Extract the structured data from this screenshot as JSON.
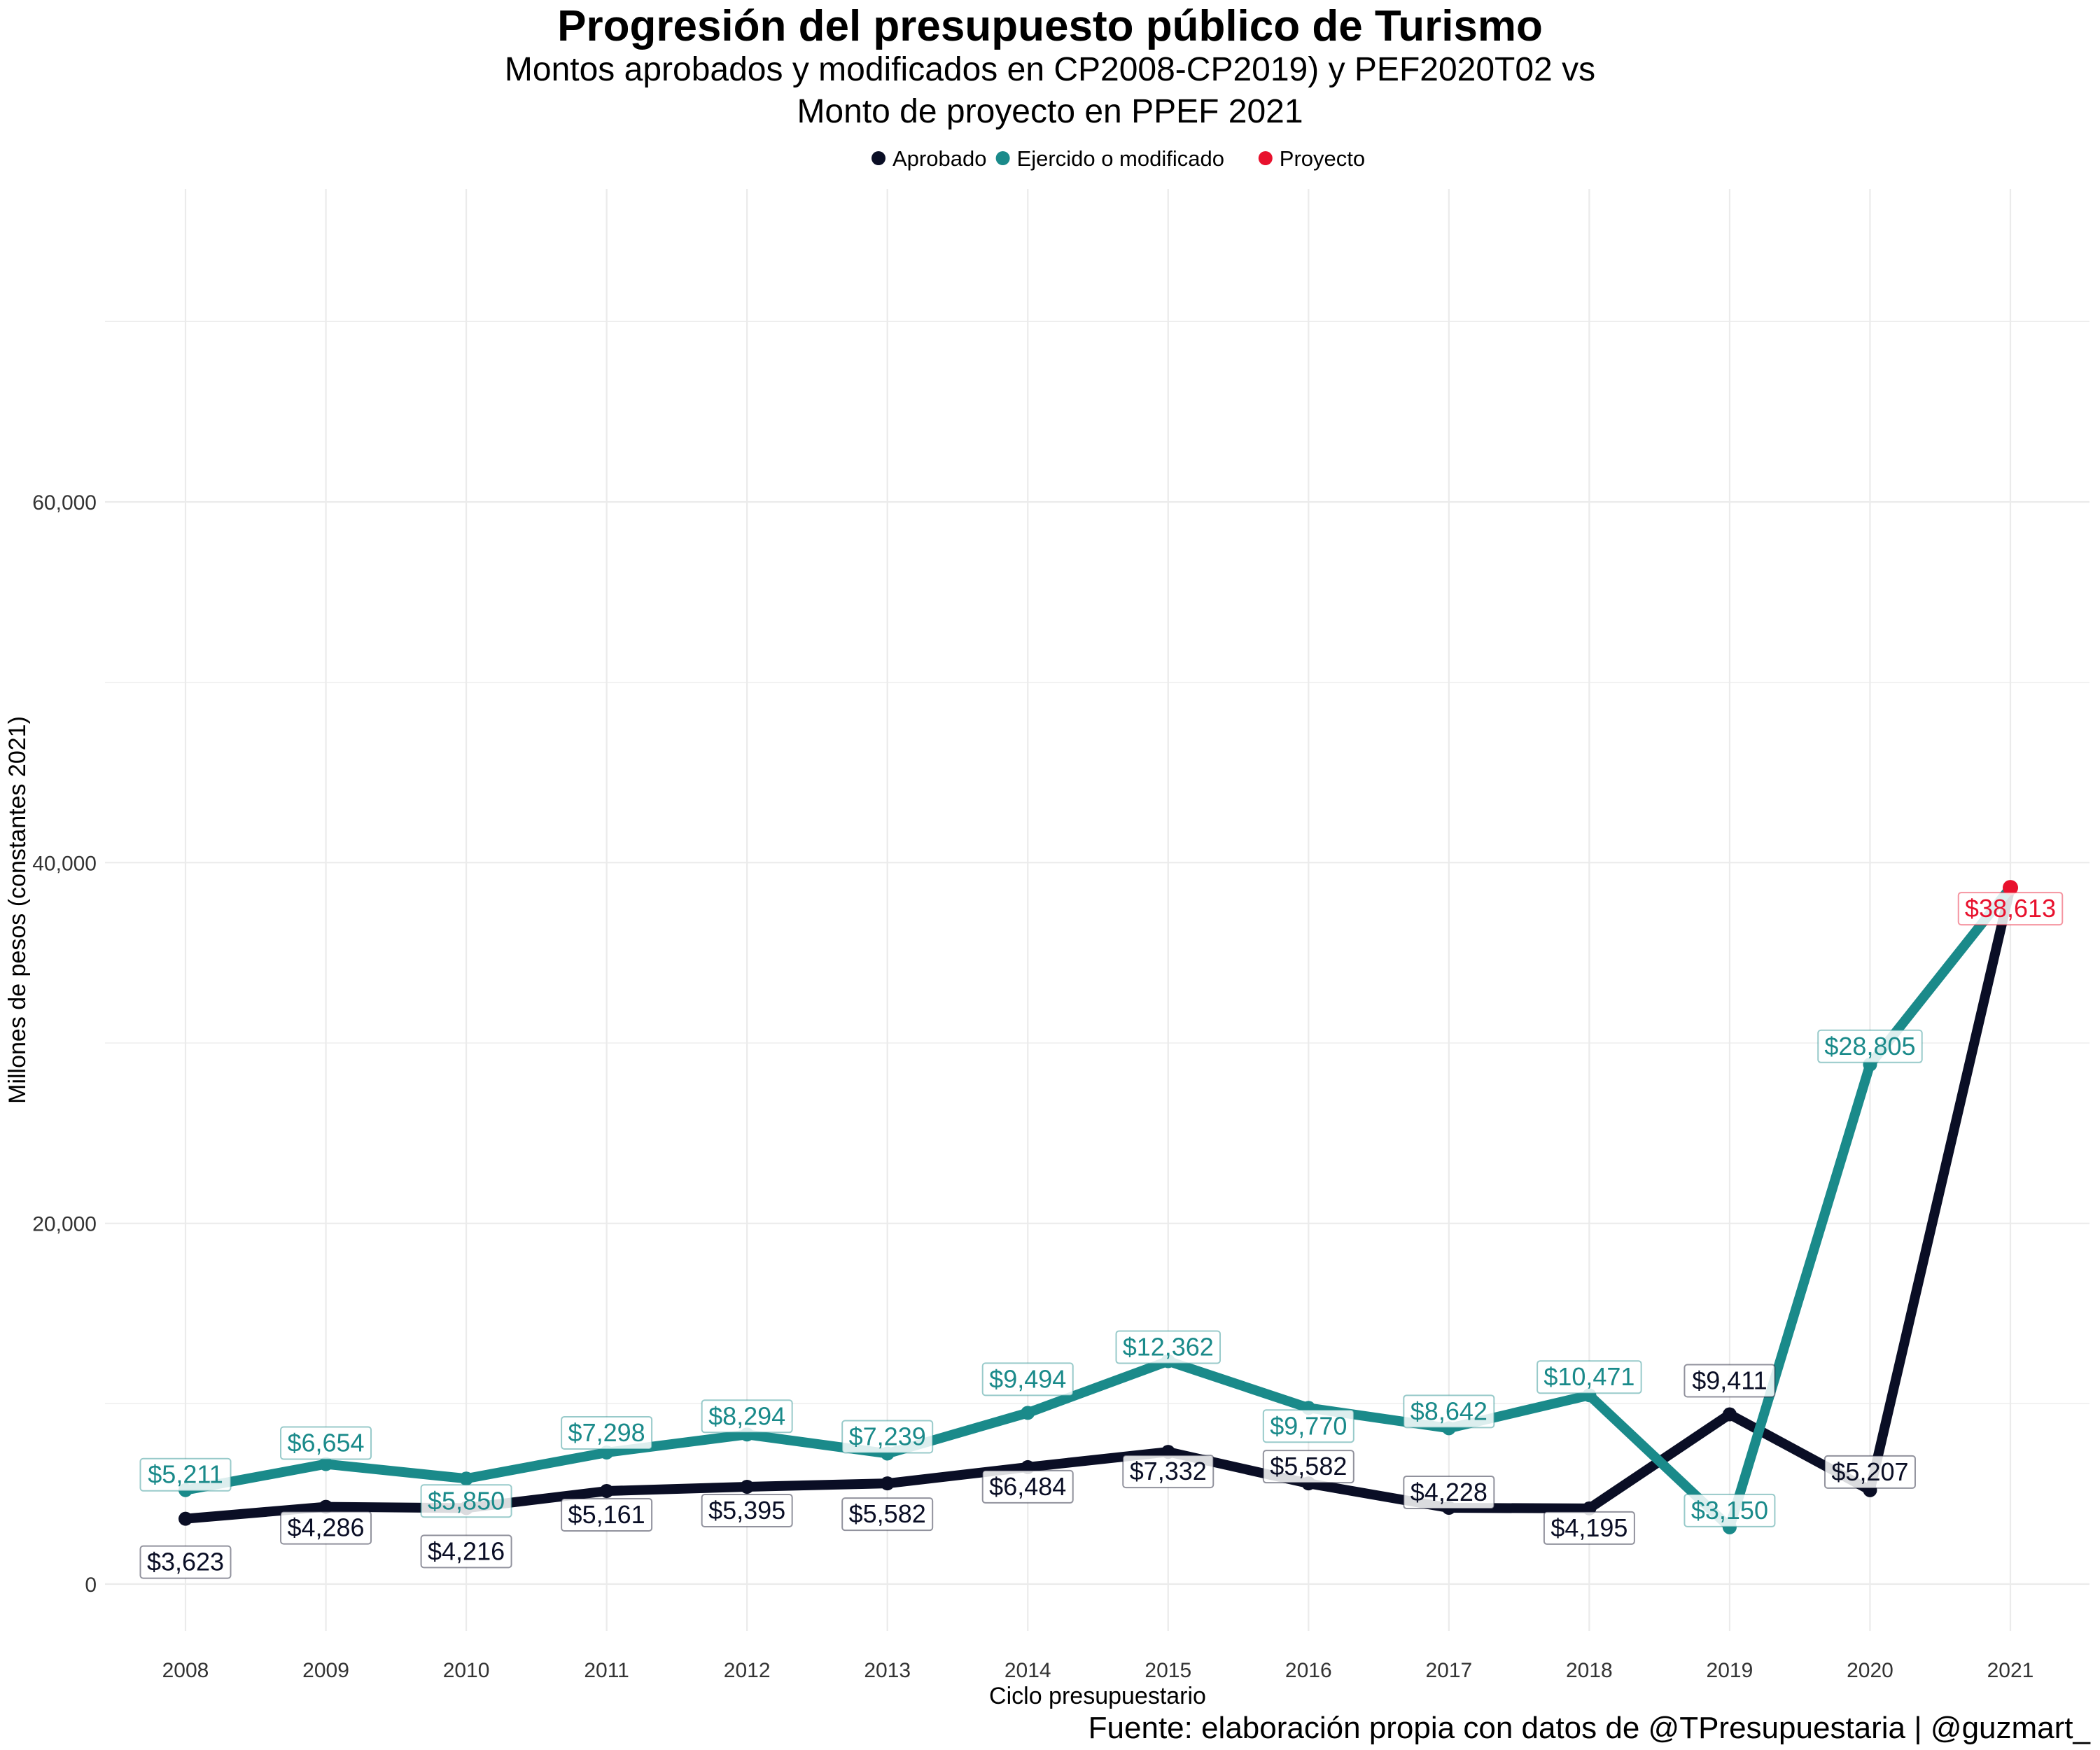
{
  "chart_data": {
    "type": "line",
    "title": "Progresión del presupuesto público de Turismo",
    "subtitle_lines": [
      "Montos aprobados y modificados en CP2008-CP2019) y PEF2020T02 vs",
      "Monto de proyecto en PPEF 2021"
    ],
    "xlabel": "Ciclo presupuestario",
    "ylabel": "Millones de pesos (constantes 2021)",
    "x": [
      2008,
      2009,
      2010,
      2011,
      2012,
      2013,
      2014,
      2015,
      2016,
      2017,
      2018,
      2019,
      2020,
      2021
    ],
    "x_tick_labels": [
      "2008",
      "2009",
      "2010",
      "2011",
      "2012",
      "2013",
      "2014",
      "2015",
      "2016",
      "2017",
      "2018",
      "2019",
      "2020",
      "2021"
    ],
    "y_ticks": [
      0,
      20000,
      40000,
      60000
    ],
    "y_tick_labels": [
      "0",
      "20,000",
      "40,000",
      "60,000"
    ],
    "ylim": [
      -4000,
      72000
    ],
    "grid": true,
    "legend_position": "top",
    "series": [
      {
        "name": "Aprobado",
        "color": "#0a0e25",
        "x": [
          2008,
          2009,
          2010,
          2011,
          2012,
          2013,
          2014,
          2015,
          2016,
          2017,
          2018,
          2019,
          2020,
          2021
        ],
        "values": [
          3623,
          4286,
          4216,
          5161,
          5395,
          5582,
          6484,
          7332,
          5582,
          4228,
          4195,
          9411,
          5207,
          38613
        ],
        "labels": [
          "$3,623",
          "$4,286",
          "$4,216",
          "$5,161",
          "$5,395",
          "$5,582",
          "$6,484",
          "$7,332",
          "$5,582",
          "$4,228",
          "$4,195",
          "$9,411",
          "$5,207",
          ""
        ]
      },
      {
        "name": "Ejercido o modificado",
        "color": "#1a8a8a",
        "x": [
          2008,
          2009,
          2010,
          2011,
          2012,
          2013,
          2014,
          2015,
          2016,
          2017,
          2018,
          2019,
          2020,
          2021
        ],
        "values": [
          5211,
          6654,
          5850,
          7298,
          8294,
          7239,
          9494,
          12362,
          9770,
          8642,
          10471,
          3150,
          28805,
          38613
        ],
        "labels": [
          "$5,211",
          "$6,654",
          "$5,850",
          "$7,298",
          "$8,294",
          "$7,239",
          "$9,494",
          "$12,362",
          "$9,770",
          "$8,642",
          "$10,471",
          "$3,150",
          "$28,805",
          ""
        ]
      },
      {
        "name": "Proyecto",
        "color": "#e8112d",
        "x": [
          2021
        ],
        "values": [
          38613
        ],
        "labels": [
          "$38,613"
        ]
      }
    ]
  },
  "source_note": "Fuente: elaboración propia con datos de @TPresupuestaria | @guzmart_"
}
